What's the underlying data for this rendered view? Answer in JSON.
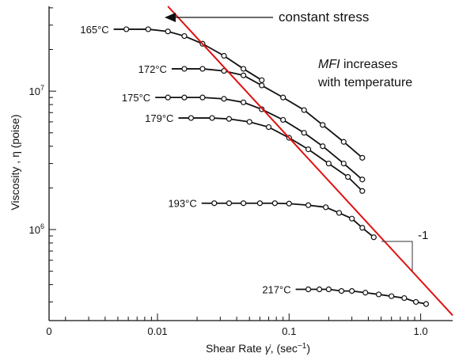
{
  "chart_data": {
    "type": "scatter",
    "xlabel": "Shear Rate γ̇,  (sec⁻¹)",
    "ylabel": "Viscosity , η (poise)",
    "xscale": "log",
    "yscale": "log",
    "xlim": [
      0.0015,
      1.75
    ],
    "ylim": [
      220000,
      41000000
    ],
    "grid": false,
    "x_tick_labels": [
      {
        "x": 0.01,
        "label": "0.01"
      },
      {
        "x": 0.1,
        "label": "0.1"
      },
      {
        "x": 1.0,
        "label": "1.0"
      }
    ],
    "x_origin_label": "0",
    "y_tick_labels": [
      {
        "y": 1000000,
        "base": "10",
        "exp": "6"
      },
      {
        "y": 10000000,
        "base": "10",
        "exp": "7"
      }
    ],
    "series": [
      {
        "name": "165°C",
        "x": [
          0.0058,
          0.0085,
          0.012,
          0.016,
          0.022,
          0.032,
          0.045,
          0.062
        ],
        "y": [
          28000000,
          28000000,
          27000000,
          25000000,
          22000000,
          18000000,
          14500000,
          12000000
        ]
      },
      {
        "name": "172°C",
        "x": [
          0.016,
          0.022,
          0.032,
          0.045,
          0.062,
          0.09,
          0.13,
          0.18,
          0.26,
          0.36
        ],
        "y": [
          14500000,
          14500000,
          14000000,
          13000000,
          11000000,
          9000000,
          7300000,
          5700000,
          4300000,
          3300000
        ]
      },
      {
        "name": "175°C",
        "x": [
          0.012,
          0.016,
          0.022,
          0.032,
          0.045,
          0.062,
          0.09,
          0.13,
          0.18,
          0.26,
          0.36
        ],
        "y": [
          9000000,
          9000000,
          9000000,
          8800000,
          8300000,
          7400000,
          6200000,
          5000000,
          4000000,
          3000000,
          2300000
        ]
      },
      {
        "name": "179°C",
        "x": [
          0.018,
          0.026,
          0.035,
          0.05,
          0.07,
          0.1,
          0.14,
          0.2,
          0.28,
          0.36
        ],
        "y": [
          6400000,
          6400000,
          6300000,
          6000000,
          5500000,
          4600000,
          3800000,
          3000000,
          2400000,
          1900000
        ]
      },
      {
        "name": "193°C",
        "x": [
          0.027,
          0.035,
          0.045,
          0.06,
          0.078,
          0.1,
          0.14,
          0.19,
          0.24,
          0.3,
          0.36,
          0.44
        ],
        "y": [
          1550000,
          1550000,
          1550000,
          1550000,
          1550000,
          1540000,
          1500000,
          1450000,
          1320000,
          1200000,
          1030000,
          880000
        ]
      },
      {
        "name": "217°C",
        "x": [
          0.14,
          0.17,
          0.2,
          0.25,
          0.3,
          0.38,
          0.48,
          0.6,
          0.75,
          0.92,
          1.1
        ],
        "y": [
          370000,
          370000,
          370000,
          360000,
          360000,
          350000,
          340000,
          330000,
          320000,
          300000,
          290000
        ]
      }
    ],
    "reference_line": {
      "label": "constant stress",
      "x": [
        0.012,
        1.75
      ],
      "y": [
        41000000,
        240000
      ],
      "color": "#e01010"
    },
    "slope_indicator": {
      "label": "-1"
    },
    "annotations": [
      {
        "text": "constant stress"
      },
      {
        "italic": "MFI",
        "text": " increases"
      },
      {
        "text": "with temperature"
      }
    ]
  }
}
